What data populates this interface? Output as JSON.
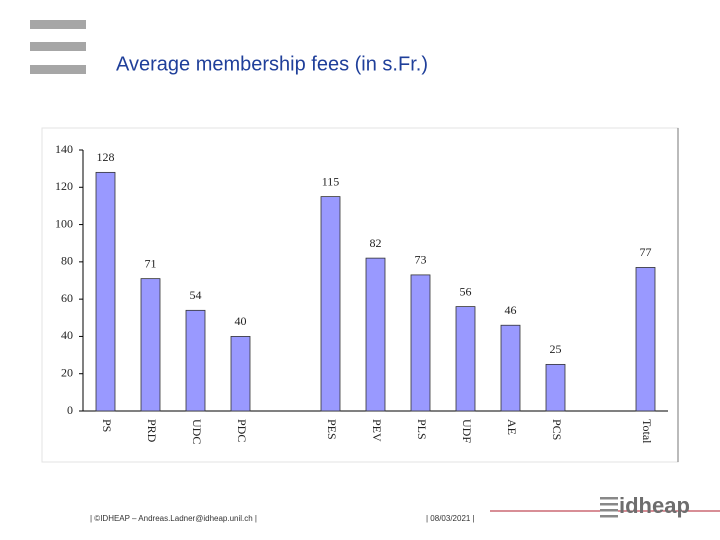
{
  "header": {
    "title": "Average membership fees (in s.Fr.)"
  },
  "chart_data": {
    "type": "bar",
    "categories": [
      "PS",
      "PRD",
      "UDC",
      "PDC",
      null,
      "PES",
      "PEV",
      "PLS",
      "UDF",
      "AE",
      "PCS",
      null,
      "Total"
    ],
    "values": [
      128,
      71,
      54,
      40,
      null,
      115,
      82,
      73,
      56,
      46,
      25,
      null,
      77
    ],
    "color": "#9999ff",
    "ylim": [
      0,
      140
    ],
    "yticks": [
      0,
      20,
      40,
      60,
      80,
      100,
      120,
      140
    ],
    "grid": false
  },
  "footer": {
    "credit": "| ©IDHEAP – Andreas.Ladner@idheap.unil.ch |",
    "date": "| 08/03/2021 |",
    "logo": "idheap"
  }
}
